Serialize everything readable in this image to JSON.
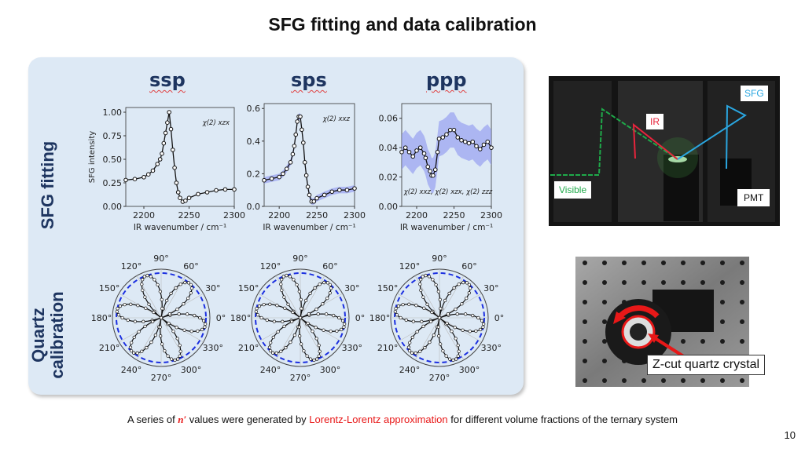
{
  "slide": {
    "title": "SFG fitting and data calibration",
    "row_labels": [
      "SFG fitting",
      "Quartz",
      "calibration"
    ],
    "polarizations": [
      "ssp",
      "sps",
      "ppp"
    ],
    "caption": {
      "part1": "A series of ",
      "symbol": "n′",
      "part2": " values were generated by ",
      "highlight": "Lorentz-Lorentz approximation",
      "part3": " for different volume fractions of the ternary system"
    },
    "page_number": "10",
    "photo_setup": {
      "labels": {
        "visible": "Visible",
        "ir": "IR",
        "sfg": "SFG",
        "pmt": "PMT"
      },
      "colors": {
        "visible": "#1faa4a",
        "ir": "#e8243c",
        "sfg": "#2aa6e0"
      }
    },
    "photo_quartz": {
      "label": "Z-cut quartz crystal",
      "arrow_color": "#e81818"
    }
  },
  "chart_data": [
    {
      "type": "line",
      "name": "ssp",
      "title": "ssp",
      "xlabel": "IR wavenumber / cm⁻¹",
      "ylabel": "SFG intensity",
      "xlim": [
        2180,
        2300
      ],
      "ylim": [
        0,
        1.05
      ],
      "xticks": [
        "2200",
        "2250",
        "2300"
      ],
      "yticks": [
        "0.00",
        "0.25",
        "0.50",
        "0.75",
        "1.00"
      ],
      "annotation": "χ(2) xzx",
      "x": [
        2180,
        2190,
        2200,
        2205,
        2210,
        2215,
        2218,
        2220,
        2222,
        2224,
        2226,
        2228,
        2230,
        2232,
        2234,
        2236,
        2238,
        2240,
        2243,
        2246,
        2250,
        2260,
        2270,
        2280,
        2290,
        2300
      ],
      "values": [
        0.28,
        0.29,
        0.31,
        0.34,
        0.38,
        0.45,
        0.5,
        0.56,
        0.67,
        0.78,
        0.89,
        1.0,
        0.82,
        0.6,
        0.41,
        0.25,
        0.15,
        0.09,
        0.05,
        0.06,
        0.09,
        0.13,
        0.15,
        0.17,
        0.18,
        0.18
      ],
      "band": false
    },
    {
      "type": "line",
      "name": "sps",
      "title": "sps",
      "xlabel": "IR wavenumber / cm⁻¹",
      "ylabel": "",
      "xlim": [
        2180,
        2300
      ],
      "ylim": [
        0,
        0.63
      ],
      "xticks": [
        "2200",
        "2250",
        "2300"
      ],
      "yticks": [
        "0.0",
        "0.2",
        "0.4",
        "0.6"
      ],
      "annotation": "χ(2) xxz",
      "x": [
        2180,
        2190,
        2200,
        2205,
        2210,
        2215,
        2218,
        2220,
        2222,
        2224,
        2226,
        2228,
        2230,
        2232,
        2234,
        2236,
        2238,
        2240,
        2243,
        2246,
        2250,
        2260,
        2270,
        2280,
        2290,
        2300
      ],
      "values": [
        0.16,
        0.17,
        0.18,
        0.2,
        0.23,
        0.27,
        0.32,
        0.37,
        0.44,
        0.52,
        0.55,
        0.55,
        0.47,
        0.39,
        0.27,
        0.19,
        0.12,
        0.07,
        0.03,
        0.03,
        0.05,
        0.07,
        0.09,
        0.1,
        0.1,
        0.11
      ],
      "band": true
    },
    {
      "type": "line",
      "name": "ppp",
      "title": "ppp",
      "xlabel": "IR wavenumber / cm⁻¹",
      "ylabel": "",
      "xlim": [
        2180,
        2300
      ],
      "ylim": [
        0,
        0.07
      ],
      "xticks": [
        "2200",
        "2250",
        "2300"
      ],
      "yticks": [
        "0.00",
        "0.02",
        "0.04",
        "0.06"
      ],
      "annotation": "χ(2) xxz,  χ(2) xzx,  χ(2) zzz",
      "x": [
        2180,
        2185,
        2190,
        2195,
        2200,
        2205,
        2210,
        2212,
        2215,
        2218,
        2220,
        2222,
        2225,
        2228,
        2230,
        2235,
        2240,
        2245,
        2250,
        2255,
        2260,
        2265,
        2270,
        2275,
        2280,
        2285,
        2290,
        2295,
        2300
      ],
      "values": [
        0.037,
        0.04,
        0.037,
        0.034,
        0.038,
        0.04,
        0.036,
        0.033,
        0.027,
        0.024,
        0.021,
        0.021,
        0.025,
        0.037,
        0.046,
        0.047,
        0.049,
        0.052,
        0.052,
        0.047,
        0.045,
        0.044,
        0.043,
        0.044,
        0.041,
        0.039,
        0.042,
        0.044,
        0.04
      ],
      "band": true
    },
    {
      "type": "scatter",
      "name": "polar-ssp",
      "subtype": "polar",
      "theta_ticks": [
        "0°",
        "30°",
        "60°",
        "90°",
        "120°",
        "150°",
        "180°",
        "210°",
        "240°",
        "270°",
        "300°",
        "330°"
      ],
      "petals": 6,
      "rotation_deg": -10,
      "reference": "dashed circle"
    },
    {
      "type": "scatter",
      "name": "polar-sps",
      "subtype": "polar",
      "theta_ticks": [
        "0°",
        "30°",
        "60°",
        "90°",
        "120°",
        "150°",
        "180°",
        "210°",
        "240°",
        "270°",
        "300°",
        "330°"
      ],
      "petals": 6,
      "rotation_deg": -10,
      "reference": "dashed circle"
    },
    {
      "type": "scatter",
      "name": "polar-ppp",
      "subtype": "polar",
      "theta_ticks": [
        "0°",
        "30°",
        "60°",
        "90°",
        "120°",
        "150°",
        "180°",
        "210°",
        "240°",
        "270°",
        "300°",
        "330°"
      ],
      "petals": 6,
      "rotation_deg": -10,
      "reference": "dashed circle"
    }
  ]
}
